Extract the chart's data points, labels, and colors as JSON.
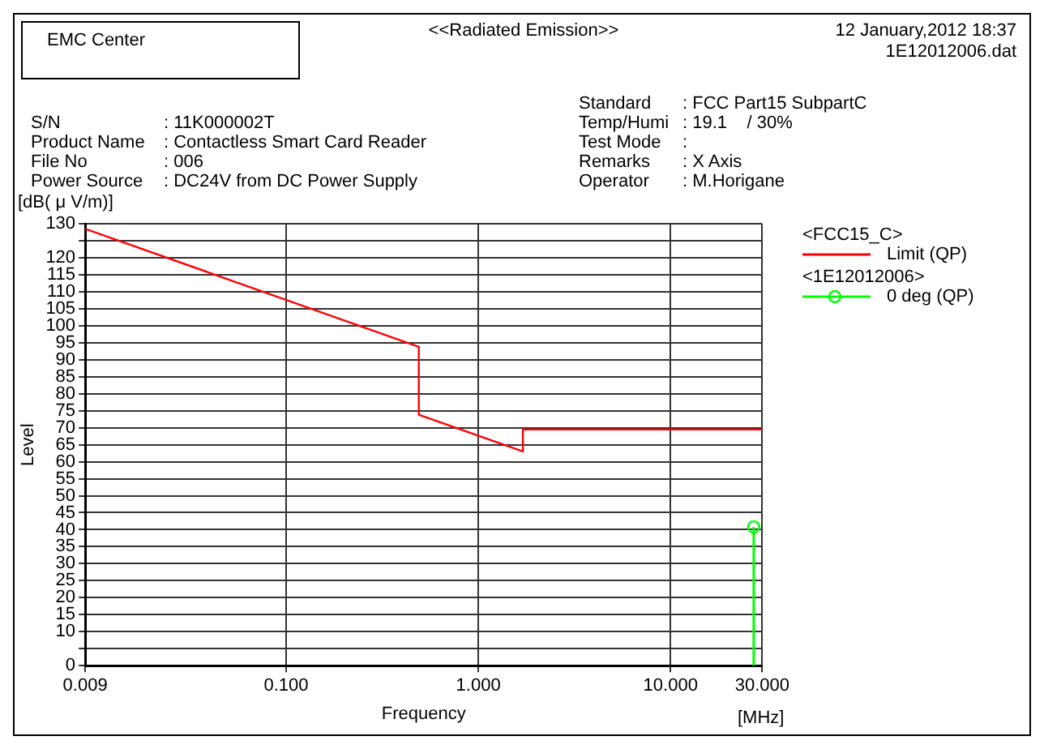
{
  "chart_data": {
    "type": "line",
    "title": "<<Radiated Emission>>",
    "xlabel": "Frequency",
    "ylabel": "Level",
    "annotations": [
      "EMC Center",
      "12 January,2012 18:37",
      "1E12012006.dat",
      "S/N",
      ": 11K000002T",
      "Product Name",
      ": Contactless Smart Card Reader",
      "File No",
      ": 006",
      "Power Source",
      ": DC24V from DC Power Supply",
      "Standard",
      ": FCC Part15 SubpartC",
      "Temp/Humi",
      ": 19.1    / 30%",
      "Test Mode",
      ":",
      "Remarks",
      ": X Axis",
      "Operator",
      ": M.Horigane",
      "<FCC15_C>",
      "<1E12012006>",
      "[dB( μ V/m)]",
      "[MHz]"
    ],
    "log": "x",
    "xlim": [
      0.009,
      30
    ],
    "xticks": [
      {
        "value": 0.009,
        "label": "0.009"
      },
      {
        "value": 0.1,
        "label": "0.100"
      },
      {
        "value": 1,
        "label": "1.000"
      },
      {
        "value": 10,
        "label": "10.000"
      },
      {
        "value": 30,
        "label": "30.000"
      }
    ],
    "ylim": [
      0,
      130
    ],
    "yticks": [
      0,
      {
        "value": 5,
        "label": null
      },
      10,
      15,
      20,
      25,
      30,
      35,
      40,
      45,
      50,
      55,
      60,
      65,
      70,
      75,
      80,
      85,
      90,
      95,
      100,
      105,
      110,
      115,
      120,
      {
        "value": 125,
        "label": null
      },
      130
    ],
    "grid": true,
    "legend": "right",
    "series": [
      {
        "name": "Limit (QP)",
        "color": "#ff0000",
        "marker": "none",
        "x": [
          0.009,
          0.49,
          0.49,
          1.705,
          1.705,
          30
        ],
        "values": [
          128.5,
          93.8,
          73.8,
          63,
          69.5,
          69.5
        ]
      },
      {
        "name": "0 deg (QP)",
        "type": "lollipop",
        "color": "#00ff00",
        "marker": "circle",
        "x": [
          27.1
        ],
        "values": [
          40.8
        ]
      }
    ]
  }
}
